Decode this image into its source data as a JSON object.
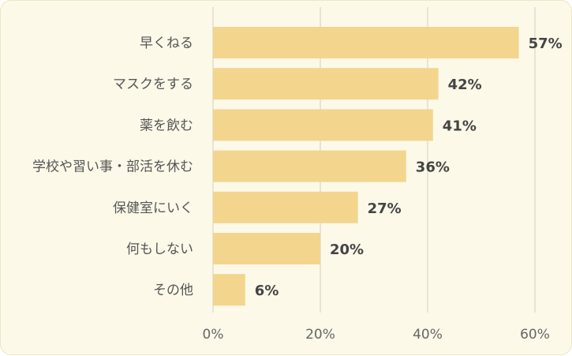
{
  "chart_data": {
    "type": "bar",
    "orientation": "horizontal",
    "categories": [
      "早くねる",
      "マスクをする",
      "薬を飲む",
      "学校や習い事・部活を休む",
      "保健室にいく",
      "何もしない",
      "その他"
    ],
    "values": [
      57,
      42,
      41,
      36,
      27,
      20,
      6
    ],
    "value_labels": [
      "57%",
      "42%",
      "41%",
      "36%",
      "27%",
      "20%",
      "6%"
    ],
    "xlim": [
      0,
      60
    ],
    "xticks": [
      0,
      20,
      40,
      60
    ],
    "xtick_labels": [
      "0%",
      "20%",
      "40%",
      "60%"
    ],
    "grid": "vertical",
    "legend": "none",
    "title": "",
    "xlabel": "",
    "ylabel": ""
  },
  "colors": {
    "bar": "#f3d58d",
    "grid": "#d9d5c6",
    "background": "#fcf9e9"
  }
}
